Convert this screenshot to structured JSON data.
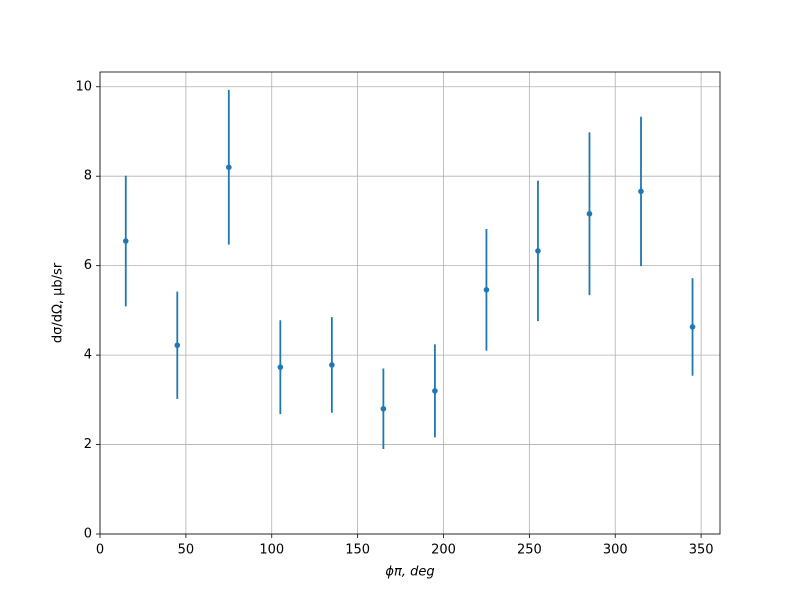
{
  "chart_data": {
    "type": "errorbar",
    "x_label": "ϕπ, deg",
    "y_label": "dσ/dΩ, μb/sr",
    "x": [
      15,
      45,
      75,
      105,
      135,
      165,
      195,
      225,
      255,
      285,
      315,
      345
    ],
    "values": [
      6.55,
      4.22,
      8.2,
      3.73,
      3.78,
      2.8,
      3.2,
      5.46,
      6.33,
      7.16,
      7.66,
      4.63
    ],
    "errors": [
      1.46,
      1.2,
      1.73,
      1.05,
      1.07,
      0.9,
      1.04,
      1.36,
      1.57,
      1.82,
      1.67,
      1.09
    ],
    "color": "#1f77b4",
    "xlim": [
      0,
      361
    ],
    "ylim": [
      0,
      10.33
    ],
    "xticks": [
      0,
      50,
      100,
      150,
      200,
      250,
      300,
      350
    ],
    "yticks": [
      0,
      2,
      4,
      6,
      8,
      10
    ],
    "grid": true
  }
}
